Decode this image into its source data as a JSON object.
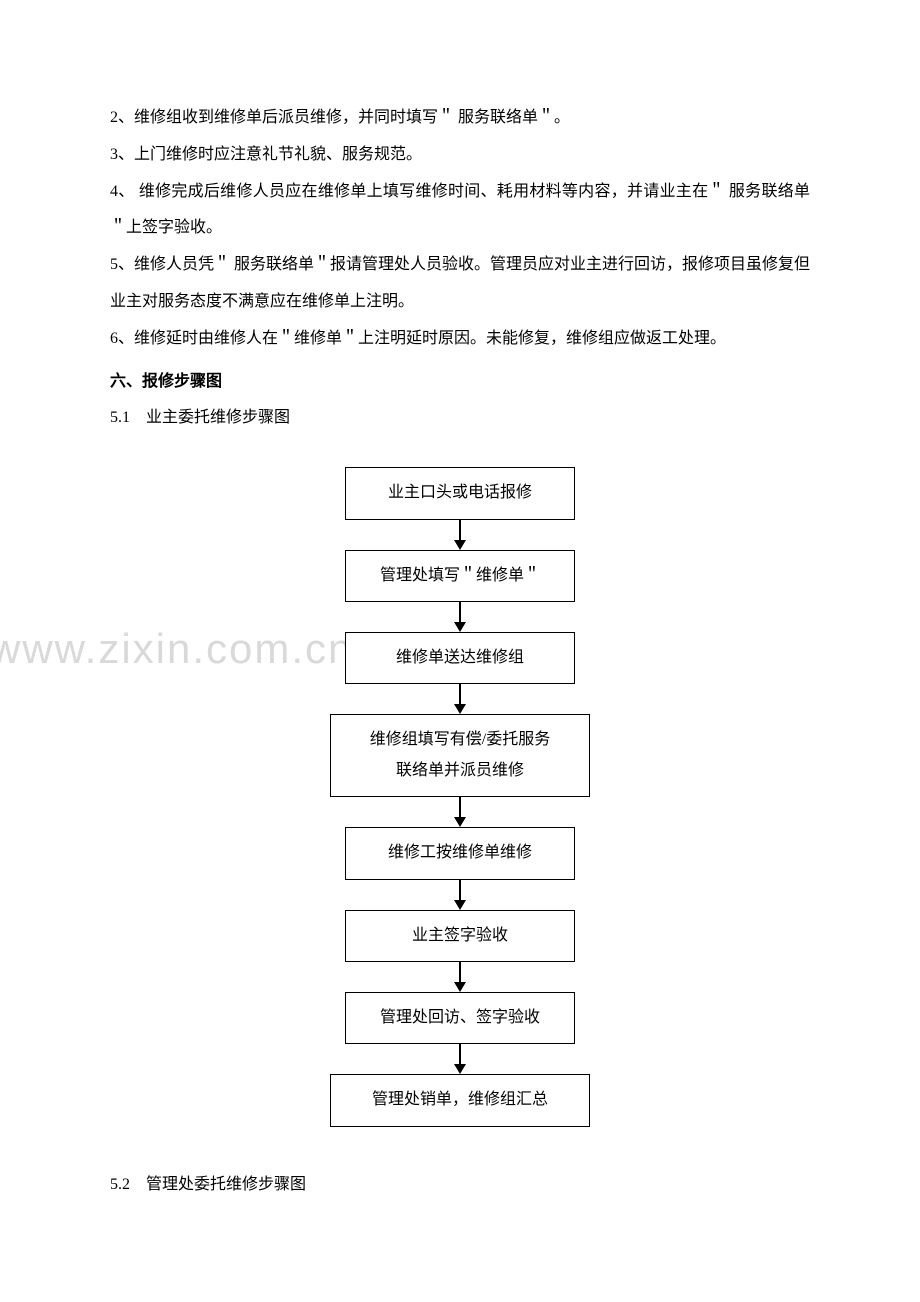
{
  "paragraphs": {
    "p1": "2、维修组收到维修单后派员维修，并同时填写＂ 服务联络单＂。",
    "p2": "3、上门维修时应注意礼节礼貌、服务规范。",
    "p3": "4、 维修完成后维修人员应在维修单上填写维修时间、耗用材料等内容，并请业主在＂ 服务联络单＂上签字验收。",
    "p4": "5、维修人员凭＂ 服务联络单＂报请管理处人员验收。管理员应对业主进行回访，报修项目虽修复但业主对服务态度不满意应在维修单上注明。",
    "p5": "6、维修延时由维修人在＂维修单＂上注明延时原因。未能修复，维修组应做返工处理。"
  },
  "section_heading": "六、报修步骤图",
  "sub_heading_1": "5.1　业主委托维修步骤图",
  "sub_heading_2": "5.2　管理处委托维修步骤图",
  "flowchart": {
    "type": "flowchart",
    "direction": "vertical",
    "box_border_color": "#000000",
    "box_bg_color": "#ffffff",
    "arrow_color": "#000000",
    "font_size": 16,
    "nodes": [
      {
        "id": "n1",
        "label": "业主口头或电话报修"
      },
      {
        "id": "n2",
        "label": "管理处填写＂维修单＂"
      },
      {
        "id": "n3",
        "label": "维修单送达维修组"
      },
      {
        "id": "n4",
        "label": "维修组填写有偿/委托服务\n联络单并派员维修"
      },
      {
        "id": "n5",
        "label": "维修工按维修单维修"
      },
      {
        "id": "n6",
        "label": "业主签字验收"
      },
      {
        "id": "n7",
        "label": "管理处回访、签字验收"
      },
      {
        "id": "n8",
        "label": "管理处销单，维修组汇总"
      }
    ],
    "edges": [
      {
        "from": "n1",
        "to": "n2"
      },
      {
        "from": "n2",
        "to": "n3"
      },
      {
        "from": "n3",
        "to": "n4"
      },
      {
        "from": "n4",
        "to": "n5"
      },
      {
        "from": "n5",
        "to": "n6"
      },
      {
        "from": "n6",
        "to": "n7"
      },
      {
        "from": "n7",
        "to": "n8"
      }
    ]
  },
  "watermark": {
    "text": "www.zixin.com.cn",
    "color": "#d9d9d9",
    "font_size": 42
  }
}
